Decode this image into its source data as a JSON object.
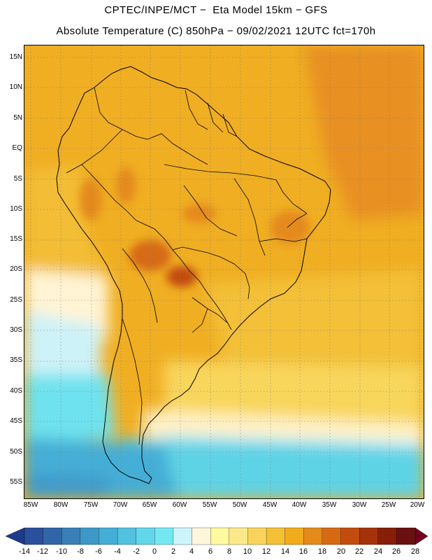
{
  "header": {
    "line1": "CPTEC/INPE/MCT −  Eta Model 15km − GFS",
    "line2": "Absolute Temperature (C) 850hPa − 09/02/2021 12UTC fct=170h"
  },
  "map": {
    "lat_labels": [
      "15N",
      "10N",
      "5N",
      "EQ",
      "5S",
      "10S",
      "15S",
      "20S",
      "25S",
      "30S",
      "35S",
      "40S",
      "45S",
      "50S",
      "55S"
    ],
    "lon_labels": [
      "85W",
      "80W",
      "75W",
      "70W",
      "65W",
      "60W",
      "55W",
      "50W",
      "45W",
      "40W",
      "35W",
      "30W",
      "25W",
      "20W"
    ],
    "grid": "dotted",
    "projection": "latitude-longitude"
  },
  "colorbar": {
    "ticks": [
      "-14",
      "-12",
      "-10",
      "-8",
      "-6",
      "-4",
      "-2",
      "0",
      "2",
      "4",
      "6",
      "8",
      "10",
      "12",
      "14",
      "16",
      "18",
      "20",
      "22",
      "24",
      "26",
      "28"
    ],
    "colors": [
      "#1e3a8a",
      "#2a4f9c",
      "#3066a8",
      "#3a7fb8",
      "#3d98c8",
      "#45aed6",
      "#52c2e0",
      "#62d6ea",
      "#74e8f2",
      "#cdf4fa",
      "#fff6dc",
      "#fffaa0",
      "#fbe888",
      "#f8d45c",
      "#f3c036",
      "#f1ab1c",
      "#e48a1a",
      "#d66a14",
      "#c24c0e",
      "#a6320a",
      "#861e08",
      "#6a1010",
      "#700020"
    ]
  }
}
